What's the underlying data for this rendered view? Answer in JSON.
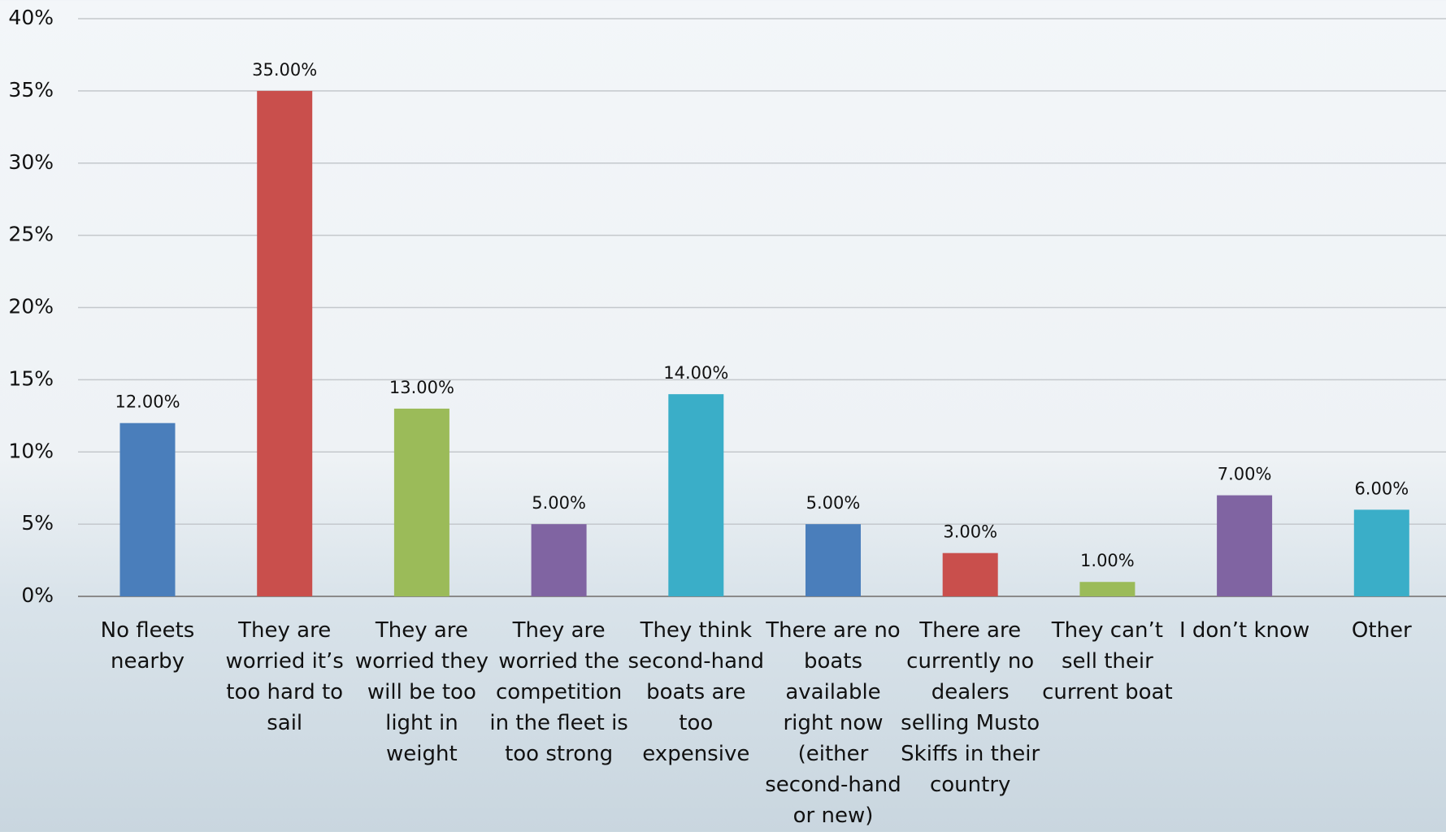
{
  "chart_data": {
    "type": "bar",
    "categories": [
      "No fleets nearby",
      "They are worried it’s too hard to sail",
      "They are worried they will be too light in weight",
      "They are worried the competition in the fleet is too strong",
      "They think second-hand boats are too expensive",
      "There are no boats available right now (either second-hand or new)",
      "There are currently no dealers selling Musto Skiffs in their country",
      "They can’t sell their current boat",
      "I don’t know",
      "Other"
    ],
    "values": [
      12,
      35,
      13,
      5,
      14,
      5,
      3,
      1,
      7,
      6
    ],
    "value_labels": [
      "12.00%",
      "35.00%",
      "13.00%",
      "5.00%",
      "14.00%",
      "5.00%",
      "3.00%",
      "1.00%",
      "7.00%",
      "6.00%"
    ],
    "colors": [
      "#4a7ebb",
      "#c94f4c",
      "#9bbb59",
      "#8064a2",
      "#3aaec8",
      "#4a7ebb",
      "#c94f4c",
      "#9bbb59",
      "#8064a2",
      "#3aaec8"
    ],
    "ylim": [
      0,
      40
    ],
    "yticks": [
      {
        "value": 0,
        "label": "0%"
      },
      {
        "value": 5,
        "label": "5%"
      },
      {
        "value": 10,
        "label": "10%"
      },
      {
        "value": 15,
        "label": "15%"
      },
      {
        "value": 20,
        "label": "20%"
      },
      {
        "value": 25,
        "label": "25%"
      },
      {
        "value": 30,
        "label": "30%"
      },
      {
        "value": 35,
        "label": "35%"
      },
      {
        "value": 40,
        "label": "40%"
      }
    ],
    "grid": true
  }
}
